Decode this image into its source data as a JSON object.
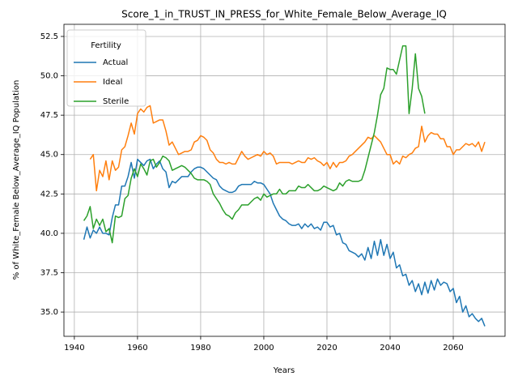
{
  "chart_data": {
    "type": "line",
    "title": "Score_1_in_TRUST_IN_PRESS_for_White_Female_Below_Average_IQ",
    "xlabel": "Years",
    "ylabel": "% of White_Female Below_Average_IQ Population",
    "legend_title": "Fertility",
    "legend": "upper left",
    "grid": true,
    "xlim": [
      1936.7,
      2076.4
    ],
    "ylim": [
      33.46,
      53.27
    ],
    "xticks": [
      1940,
      1960,
      1980,
      2000,
      2020,
      2040,
      2060
    ],
    "yticks": [
      {
        "value": 35,
        "label": "35.0"
      },
      37.5,
      {
        "value": 40,
        "label": "40.0"
      },
      42.5,
      {
        "value": 45,
        "label": "45.0"
      },
      47.5,
      {
        "value": 50,
        "label": "50.0"
      },
      52.5
    ],
    "series": [
      {
        "name": "Actual",
        "color": "#1f77b4",
        "x": [
          1943,
          1944,
          1945,
          1946,
          1947,
          1948,
          1949,
          1950,
          1951,
          1952,
          1953,
          1954,
          1955,
          1956,
          1957,
          1958,
          1959,
          1960,
          1961,
          1962,
          1963,
          1964,
          1965,
          1966,
          1967,
          1968,
          1969,
          1970,
          1971,
          1972,
          1973,
          1974,
          1975,
          1976,
          1977,
          1978,
          1979,
          1980,
          1981,
          1982,
          1983,
          1984,
          1985,
          1986,
          1987,
          1988,
          1989,
          1990,
          1991,
          1992,
          1993,
          1994,
          1995,
          1996,
          1997,
          1998,
          1999,
          2000,
          2001,
          2002,
          2003,
          2004,
          2005,
          2006,
          2007,
          2008,
          2009,
          2010,
          2011,
          2012,
          2013,
          2014,
          2015,
          2016,
          2017,
          2018,
          2019,
          2020,
          2021,
          2022,
          2023,
          2024,
          2025,
          2026,
          2027,
          2028,
          2029,
          2030,
          2031,
          2032,
          2033,
          2034,
          2035,
          2036,
          2037,
          2038,
          2039,
          2040,
          2041,
          2042,
          2043,
          2044,
          2045,
          2046,
          2047,
          2048,
          2049,
          2050,
          2051,
          2052,
          2053,
          2054,
          2055,
          2056,
          2057,
          2058,
          2059,
          2060,
          2061,
          2062,
          2063,
          2064,
          2065,
          2066,
          2067,
          2068,
          2069,
          2070
        ],
        "values": [
          39.6,
          40.4,
          39.7,
          40.2,
          40.0,
          40.4,
          40.0,
          40.0,
          39.9,
          41.0,
          41.8,
          41.8,
          43.0,
          43.0,
          43.6,
          44.5,
          43.5,
          44.7,
          44.5,
          44.3,
          44.6,
          44.7,
          44.1,
          44.4,
          44.6,
          44.1,
          43.9,
          42.9,
          43.3,
          43.2,
          43.4,
          43.6,
          43.6,
          43.6,
          43.9,
          44.1,
          44.2,
          44.2,
          44.1,
          43.9,
          43.7,
          43.5,
          43.4,
          43.0,
          42.8,
          42.7,
          42.6,
          42.6,
          42.7,
          43.0,
          43.1,
          43.1,
          43.1,
          43.1,
          43.3,
          43.2,
          43.2,
          43.1,
          42.8,
          42.5,
          41.9,
          41.5,
          41.1,
          40.9,
          40.8,
          40.6,
          40.5,
          40.5,
          40.6,
          40.3,
          40.6,
          40.4,
          40.6,
          40.3,
          40.4,
          40.2,
          40.7,
          40.7,
          40.4,
          40.5,
          39.9,
          40.0,
          39.4,
          39.3,
          38.9,
          38.8,
          38.7,
          38.5,
          38.7,
          38.3,
          39.1,
          38.4,
          39.5,
          38.6,
          39.6,
          38.6,
          39.3,
          38.4,
          38.8,
          37.8,
          38.0,
          37.3,
          37.4,
          36.7,
          37.0,
          36.3,
          36.8,
          36.1,
          36.9,
          36.2,
          37.0,
          36.4,
          37.1,
          36.7,
          36.9,
          36.8,
          36.3,
          36.5,
          35.6,
          36.0,
          35.0,
          35.4,
          34.7,
          34.9,
          34.6,
          34.4,
          34.6,
          34.1
        ]
      },
      {
        "name": "Ideal",
        "color": "#ff7f0e",
        "x": [
          1945,
          1946,
          1947,
          1948,
          1949,
          1950,
          1951,
          1952,
          1953,
          1954,
          1955,
          1956,
          1957,
          1958,
          1959,
          1960,
          1961,
          1962,
          1963,
          1964,
          1965,
          1966,
          1967,
          1968,
          1969,
          1970,
          1971,
          1972,
          1973,
          1974,
          1975,
          1976,
          1977,
          1978,
          1979,
          1980,
          1981,
          1982,
          1983,
          1984,
          1985,
          1986,
          1987,
          1988,
          1989,
          1990,
          1991,
          1992,
          1993,
          1994,
          1995,
          1996,
          1997,
          1998,
          1999,
          2000,
          2001,
          2002,
          2003,
          2004,
          2005,
          2006,
          2007,
          2008,
          2009,
          2010,
          2011,
          2012,
          2013,
          2014,
          2015,
          2016,
          2017,
          2018,
          2019,
          2020,
          2021,
          2022,
          2023,
          2024,
          2025,
          2026,
          2027,
          2028,
          2029,
          2030,
          2031,
          2032,
          2033,
          2034,
          2035,
          2036,
          2037,
          2038,
          2039,
          2040,
          2041,
          2042,
          2043,
          2044,
          2045,
          2046,
          2047,
          2048,
          2049,
          2050,
          2051,
          2052,
          2053,
          2054,
          2055,
          2056,
          2057,
          2058,
          2059,
          2060,
          2061,
          2062,
          2063,
          2064,
          2065,
          2066,
          2067,
          2068,
          2069,
          2070
        ],
        "values": [
          44.7,
          45.0,
          42.7,
          44.0,
          43.6,
          44.6,
          43.4,
          44.6,
          44.0,
          44.2,
          45.3,
          45.5,
          46.2,
          47.0,
          46.3,
          47.6,
          47.9,
          47.7,
          48.0,
          48.1,
          47.0,
          47.1,
          47.2,
          47.2,
          46.5,
          45.6,
          45.8,
          45.4,
          45.0,
          45.1,
          45.2,
          45.2,
          45.3,
          45.8,
          45.9,
          46.2,
          46.1,
          45.9,
          45.3,
          45.1,
          44.7,
          44.5,
          44.5,
          44.4,
          44.5,
          44.4,
          44.4,
          44.8,
          45.2,
          44.9,
          44.7,
          44.8,
          44.9,
          45.0,
          44.9,
          45.2,
          45.0,
          45.1,
          44.9,
          44.4,
          44.5,
          44.5,
          44.5,
          44.5,
          44.4,
          44.5,
          44.6,
          44.5,
          44.5,
          44.8,
          44.7,
          44.8,
          44.6,
          44.5,
          44.3,
          44.5,
          44.1,
          44.5,
          44.2,
          44.5,
          44.5,
          44.6,
          44.9,
          45.0,
          45.2,
          45.4,
          45.6,
          45.8,
          46.1,
          46.0,
          46.2,
          46.0,
          45.8,
          45.4,
          45.0,
          45.0,
          44.4,
          44.6,
          44.4,
          44.9,
          44.8,
          45.0,
          45.1,
          45.4,
          45.5,
          46.8,
          45.8,
          46.2,
          46.4,
          46.3,
          46.3,
          46.0,
          46.0,
          45.5,
          45.5,
          45.0,
          45.3,
          45.3,
          45.5,
          45.7,
          45.6,
          45.7,
          45.5,
          45.8,
          45.2,
          45.8
        ]
      },
      {
        "name": "Sterile",
        "color": "#2ca02c",
        "x": [
          1943,
          1944,
          1945,
          1946,
          1947,
          1948,
          1949,
          1950,
          1951,
          1952,
          1953,
          1954,
          1955,
          1956,
          1957,
          1958,
          1959,
          1960,
          1961,
          1962,
          1963,
          1964,
          1965,
          1966,
          1967,
          1968,
          1969,
          1970,
          1971,
          1972,
          1973,
          1974,
          1975,
          1976,
          1977,
          1978,
          1979,
          1980,
          1981,
          1982,
          1983,
          1984,
          1985,
          1986,
          1987,
          1988,
          1989,
          1990,
          1991,
          1992,
          1993,
          1994,
          1995,
          1996,
          1997,
          1998,
          1999,
          2000,
          2001,
          2002,
          2003,
          2004,
          2005,
          2006,
          2007,
          2008,
          2009,
          2010,
          2011,
          2012,
          2013,
          2014,
          2015,
          2016,
          2017,
          2018,
          2019,
          2020,
          2021,
          2022,
          2023,
          2024,
          2025,
          2026,
          2027,
          2028,
          2029,
          2030,
          2031,
          2032,
          2033,
          2034,
          2035,
          2036,
          2037,
          2038,
          2039,
          2040,
          2041,
          2042,
          2043,
          2044,
          2045,
          2046,
          2047,
          2048,
          2049,
          2050,
          2051
        ],
        "values": [
          40.8,
          41.1,
          41.7,
          40.3,
          40.9,
          40.5,
          40.9,
          40.1,
          40.3,
          39.4,
          41.1,
          41.0,
          41.1,
          42.2,
          42.4,
          43.5,
          44.1,
          43.6,
          44.4,
          44.1,
          43.7,
          44.6,
          44.7,
          44.2,
          44.5,
          44.9,
          44.8,
          44.6,
          44.0,
          44.1,
          44.2,
          44.3,
          44.2,
          44.0,
          43.8,
          43.5,
          43.4,
          43.4,
          43.4,
          43.3,
          43.1,
          42.5,
          42.2,
          41.9,
          41.5,
          41.2,
          41.1,
          40.9,
          41.3,
          41.5,
          41.8,
          41.8,
          41.8,
          42.0,
          42.2,
          42.3,
          42.1,
          42.5,
          42.3,
          42.4,
          42.5,
          42.5,
          42.8,
          42.5,
          42.5,
          42.7,
          42.7,
          42.7,
          43.0,
          42.9,
          42.9,
          43.1,
          42.9,
          42.7,
          42.7,
          42.8,
          43.0,
          42.9,
          42.8,
          42.7,
          42.8,
          43.2,
          43.0,
          43.3,
          43.4,
          43.3,
          43.3,
          43.3,
          43.4,
          44.0,
          44.8,
          45.6,
          46.4,
          47.5,
          48.8,
          49.2,
          50.5,
          50.4,
          50.4,
          50.1,
          51.0,
          51.9,
          51.9,
          47.6,
          49.2,
          51.4,
          49.2,
          48.7,
          47.6
        ]
      }
    ]
  }
}
